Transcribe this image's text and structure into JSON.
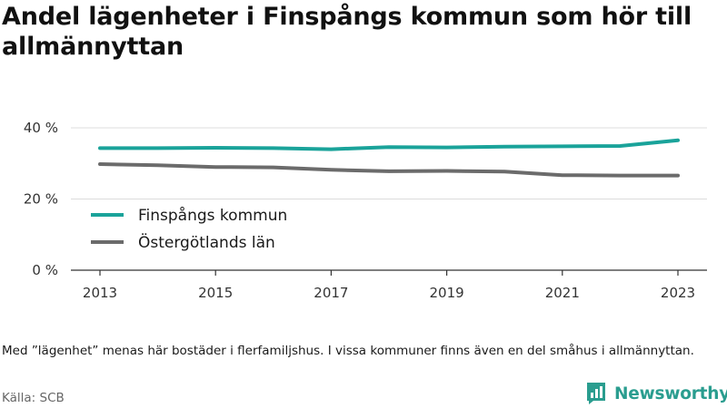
{
  "title": "Andel lägenheter i Finspångs kommun som hör till allmännyttan",
  "note": "Med ”lägenhet” menas här bostäder i flerfamiljshus. I vissa kommuner finns även en del småhus i allmännyttan.",
  "source": "Källa: SCB",
  "brand": {
    "name": "Newsworthy",
    "icon": "bar-chart-logo-icon",
    "color": "#2a9d8f"
  },
  "chart_data": {
    "type": "line",
    "x": [
      2013,
      2014,
      2015,
      2016,
      2017,
      2018,
      2019,
      2020,
      2021,
      2022,
      2023
    ],
    "xticks": [
      2013,
      2015,
      2017,
      2019,
      2021,
      2023
    ],
    "yticks": [
      0,
      20,
      40
    ],
    "ytick_labels": [
      "0 %",
      "20 %",
      "40 %"
    ],
    "ylim": [
      0,
      40
    ],
    "grid": "horizontal",
    "legend": "left",
    "series": [
      {
        "name": "Finspångs kommun",
        "color": "#1aa39a",
        "values": [
          34.3,
          34.3,
          34.4,
          34.3,
          34.0,
          34.6,
          34.5,
          34.7,
          34.8,
          34.9,
          36.5
        ]
      },
      {
        "name": "Östergötlands län",
        "color": "#6b6b6b",
        "values": [
          29.8,
          29.5,
          29.0,
          28.9,
          28.2,
          27.8,
          27.9,
          27.7,
          26.7,
          26.6,
          26.6
        ]
      }
    ]
  }
}
